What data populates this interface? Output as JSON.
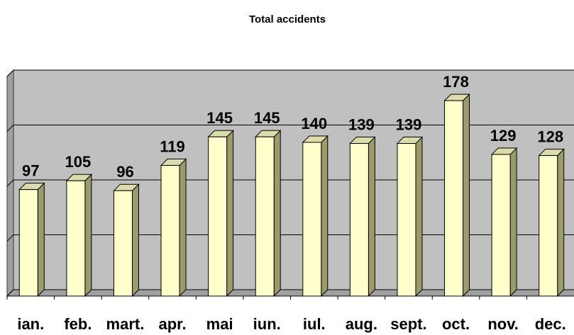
{
  "chart_data": {
    "type": "bar3d",
    "title": "Total accidents",
    "categories": [
      "ian.",
      "feb.",
      "mart.",
      "apr.",
      "mai",
      "iun.",
      "iul.",
      "aug.",
      "sept.",
      "oct.",
      "nov.",
      "dec."
    ],
    "values": [
      97,
      105,
      96,
      119,
      145,
      145,
      140,
      139,
      139,
      178,
      129,
      128
    ],
    "color": "#ffffcc",
    "ylim": [
      0,
      200
    ],
    "yticks": [
      0,
      50,
      100,
      150,
      200
    ],
    "grid": true
  }
}
